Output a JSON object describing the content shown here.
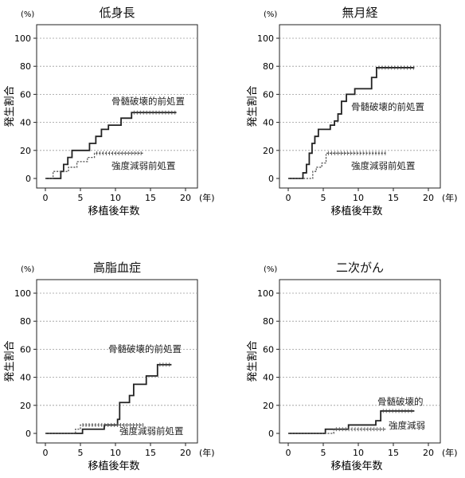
{
  "chart_data": [
    {
      "type": "line",
      "title": "低身長",
      "xlabel": "移植後年数",
      "ylabel": "発生割合",
      "yunit": "(%)",
      "xunit": "(年)",
      "xlim": [
        0,
        20
      ],
      "ylim": [
        0,
        100
      ],
      "xticks": [
        0,
        5,
        10,
        15,
        20
      ],
      "yticks": [
        0,
        20,
        40,
        60,
        80,
        100
      ],
      "grid": "horizontal-dashed",
      "series": [
        {
          "name": "骨髄破壊的前処置",
          "style": "solid",
          "steps": [
            [
              0,
              0
            ],
            [
              2,
              0
            ],
            [
              2.2,
              5
            ],
            [
              2.6,
              10
            ],
            [
              3.2,
              15
            ],
            [
              3.8,
              20
            ],
            [
              5.9,
              20
            ],
            [
              6.3,
              25
            ],
            [
              7.2,
              30
            ],
            [
              8,
              35
            ],
            [
              9,
              38
            ],
            [
              10.8,
              43
            ],
            [
              12.3,
              47
            ],
            [
              18.7,
              47
            ]
          ]
        },
        {
          "name": "強度減弱前処置",
          "style": "dotted",
          "steps": [
            [
              0,
              0
            ],
            [
              1,
              0
            ],
            [
              1.1,
              5
            ],
            [
              3.3,
              8
            ],
            [
              4.5,
              12
            ],
            [
              6,
              15
            ],
            [
              7,
              18
            ],
            [
              14,
              18
            ]
          ]
        }
      ]
    },
    {
      "type": "line",
      "title": "無月経",
      "xlabel": "移植後年数",
      "ylabel": "発生割合",
      "yunit": "(%)",
      "xunit": "(年)",
      "xlim": [
        0,
        20
      ],
      "ylim": [
        0,
        100
      ],
      "xticks": [
        0,
        5,
        10,
        15,
        20
      ],
      "yticks": [
        0,
        20,
        40,
        60,
        80,
        100
      ],
      "grid": "horizontal-dashed",
      "series": [
        {
          "name": "骨髄破壊的前処置",
          "style": "solid",
          "steps": [
            [
              0,
              0
            ],
            [
              1.5,
              0
            ],
            [
              2.1,
              4
            ],
            [
              2.6,
              10
            ],
            [
              3,
              18
            ],
            [
              3.4,
              25
            ],
            [
              3.8,
              30
            ],
            [
              4.3,
              35
            ],
            [
              6,
              38
            ],
            [
              6.6,
              41
            ],
            [
              7.1,
              46
            ],
            [
              7.6,
              55
            ],
            [
              8.3,
              60
            ],
            [
              9.5,
              64
            ],
            [
              11.9,
              72
            ],
            [
              12.6,
              79
            ],
            [
              18,
              79
            ]
          ]
        },
        {
          "name": "強度減弱前処置",
          "style": "dotted",
          "steps": [
            [
              0,
              0
            ],
            [
              3,
              0
            ],
            [
              3.5,
              5
            ],
            [
              4,
              8
            ],
            [
              4.8,
              11
            ],
            [
              5.4,
              18
            ],
            [
              14,
              18
            ]
          ]
        }
      ]
    },
    {
      "type": "line",
      "title": "高脂血症",
      "xlabel": "移植後年数",
      "ylabel": "発生割合",
      "yunit": "(%)",
      "xunit": "(年)",
      "xlim": [
        0,
        20
      ],
      "ylim": [
        0,
        100
      ],
      "xticks": [
        0,
        5,
        10,
        15,
        20
      ],
      "yticks": [
        0,
        20,
        40,
        60,
        80,
        100
      ],
      "grid": "horizontal-dashed",
      "series": [
        {
          "name": "骨髄破壊的前処置",
          "style": "solid",
          "steps": [
            [
              0,
              0
            ],
            [
              4.8,
              0
            ],
            [
              5.3,
              3
            ],
            [
              8.4,
              6
            ],
            [
              10.3,
              10
            ],
            [
              10.6,
              22
            ],
            [
              12,
              27
            ],
            [
              12.6,
              35
            ],
            [
              14.4,
              41
            ],
            [
              16,
              49
            ],
            [
              18,
              49
            ]
          ]
        },
        {
          "name": "強度減弱前処置",
          "style": "dotted",
          "steps": [
            [
              0,
              0
            ],
            [
              3.5,
              0
            ],
            [
              4.3,
              3
            ],
            [
              5,
              6
            ],
            [
              14,
              6
            ]
          ]
        }
      ]
    },
    {
      "type": "line",
      "title": "二次がん",
      "xlabel": "移植後年数",
      "ylabel": "発生割合",
      "yunit": "(%)",
      "xunit": "(年)",
      "xlim": [
        0,
        20
      ],
      "ylim": [
        0,
        100
      ],
      "xticks": [
        0,
        5,
        10,
        15,
        20
      ],
      "yticks": [
        0,
        20,
        40,
        60,
        80,
        100
      ],
      "grid": "horizontal-dashed",
      "series": [
        {
          "name": "骨髄破壊的",
          "style": "solid",
          "steps": [
            [
              0,
              0
            ],
            [
              5.1,
              0
            ],
            [
              5.3,
              3
            ],
            [
              8.4,
              3
            ],
            [
              8.6,
              6
            ],
            [
              12.3,
              6
            ],
            [
              12.5,
              9
            ],
            [
              13,
              9
            ],
            [
              13.2,
              16
            ],
            [
              18,
              16
            ]
          ]
        },
        {
          "name": "強度減弱",
          "style": "dotted",
          "steps": [
            [
              0,
              0
            ],
            [
              6,
              0
            ],
            [
              6.5,
              3
            ],
            [
              14,
              3
            ]
          ]
        }
      ]
    }
  ]
}
